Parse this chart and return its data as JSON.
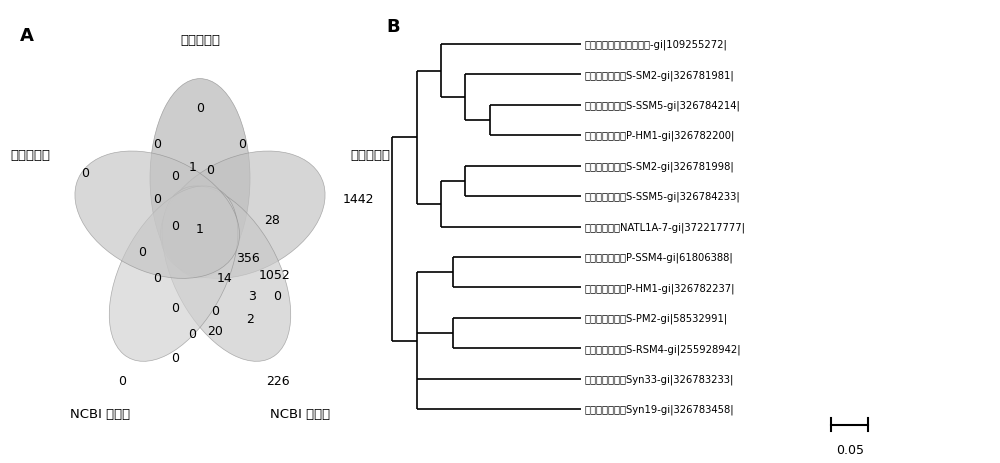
{
  "panel_a_label": "A",
  "panel_b_label": "B",
  "venn_labels": {
    "top": "病毒核酸库",
    "right": "宿主基因组",
    "bottom_right": "NCBI 核酸库",
    "bottom_left": "NCBI 蛋白库",
    "left": "病毒蛋白库"
  },
  "tree_taxa": [
    "西方脉络膜神经颗粒病毒-gi|109255272|",
    "联合球菌噌菌体S-SM2-gi|326781981|",
    "联合球菌噌菌体S-SSM5-gi|326784214|",
    "原氯球菌噌菌体P-HM1-gi|326782200|",
    "联合球菌噌菌体S-SM2-gi|326781998|",
    "联合球菌噌菌体S-SSM5-gi|326784233|",
    "蓝细菌噌菌体NATL1A-7-gi|372217777|",
    "原氯球菌噌菌体P-SSM4-gi|61806388|",
    "原氯球菌噌菌体P-HM1-gi|326782237|",
    "联合球菌噌菌体S-PM2-gi|58532991|",
    "联合球菌噌菌体S-RSM4-gi|255928942|",
    "原氯球菌噌菌体Syn33-gi|326783233|",
    "联合球菌噌菌体Syn19-gi|326783458|"
  ],
  "scale_bar_label": "0.05",
  "background_color": "#ffffff",
  "text_color": "#000000"
}
